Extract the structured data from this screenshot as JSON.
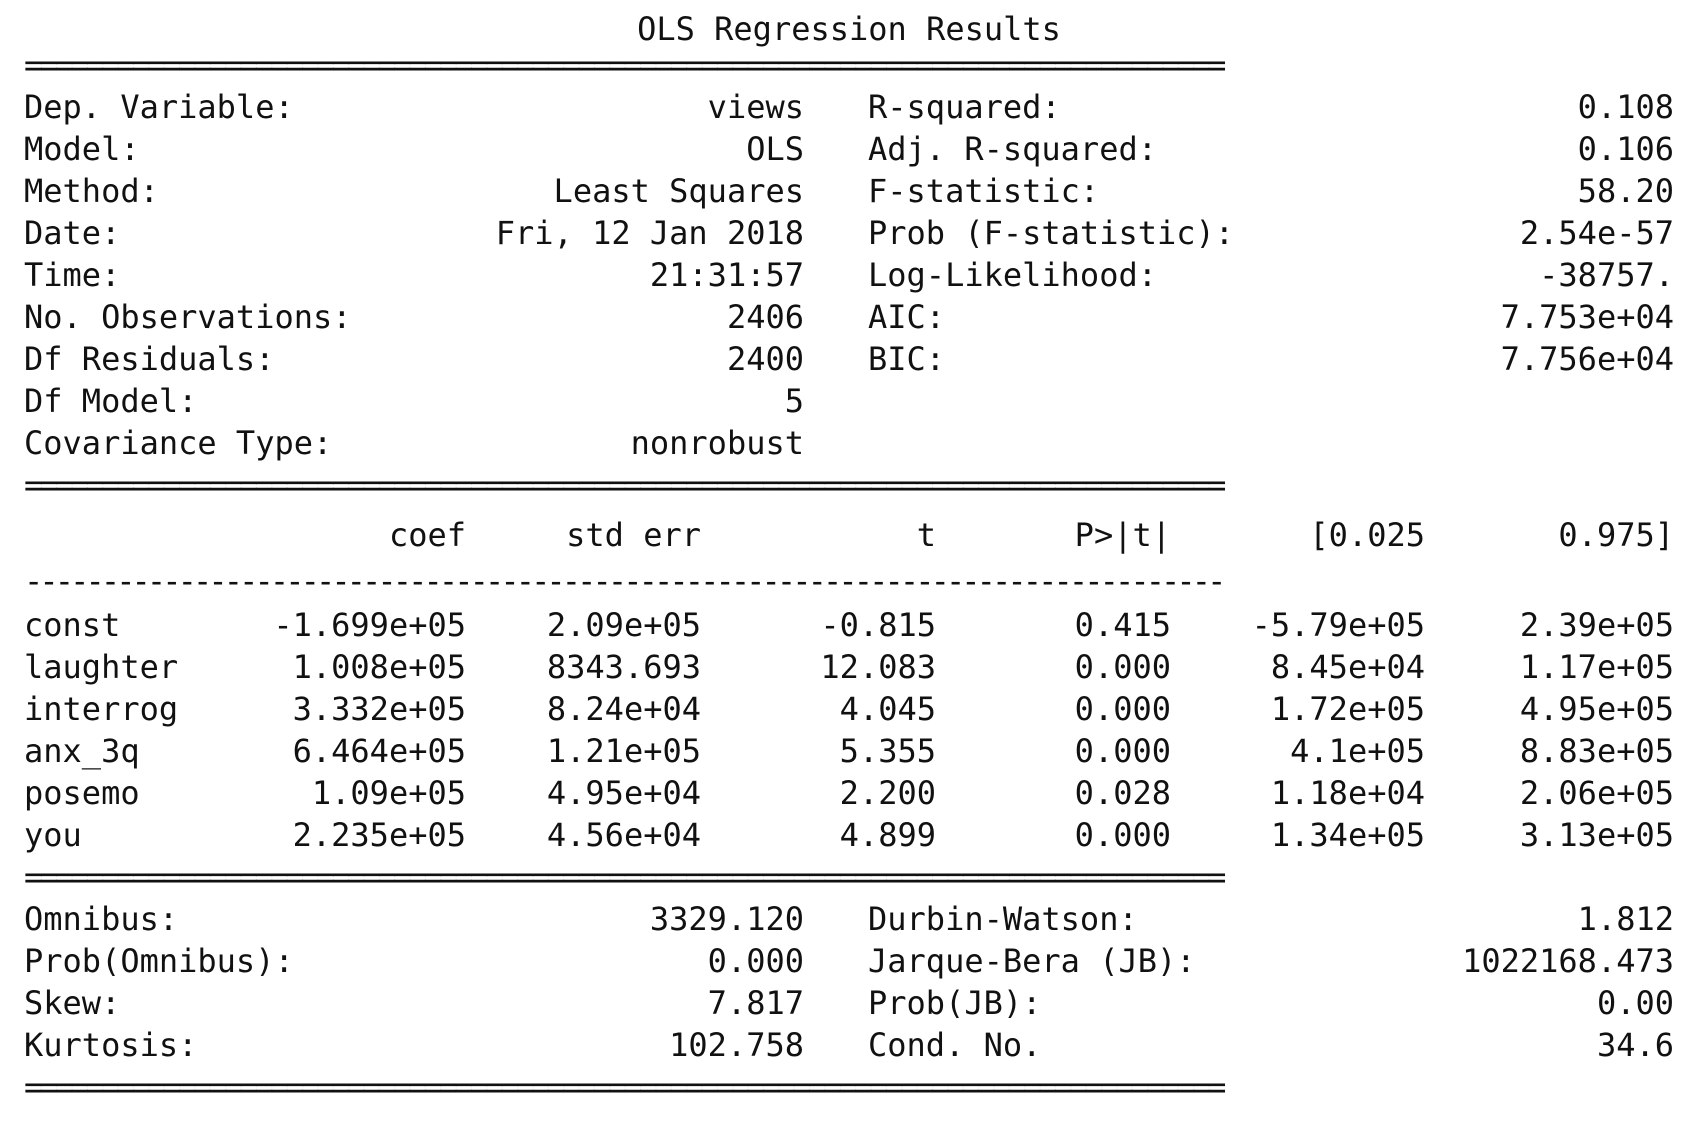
{
  "title": "OLS Regression Results",
  "rules": {
    "double": "==============================================================================",
    "single": "------------------------------------------------------------------------------"
  },
  "summary": {
    "left": [
      {
        "label": "Dep. Variable:",
        "value": "views"
      },
      {
        "label": "Model:",
        "value": "OLS"
      },
      {
        "label": "Method:",
        "value": "Least Squares"
      },
      {
        "label": "Date:",
        "value": "Fri, 12 Jan 2018"
      },
      {
        "label": "Time:",
        "value": "21:31:57"
      },
      {
        "label": "No. Observations:",
        "value": "2406"
      },
      {
        "label": "Df Residuals:",
        "value": "2400"
      },
      {
        "label": "Df Model:",
        "value": "5"
      },
      {
        "label": "Covariance Type:",
        "value": "nonrobust"
      }
    ],
    "right": [
      {
        "label": "R-squared:",
        "value": "0.108"
      },
      {
        "label": "Adj. R-squared:",
        "value": "0.106"
      },
      {
        "label": "F-statistic:",
        "value": "58.20"
      },
      {
        "label": "Prob (F-statistic):",
        "value": "2.54e-57"
      },
      {
        "label": "Log-Likelihood:",
        "value": "-38757."
      },
      {
        "label": "AIC:",
        "value": "7.753e+04"
      },
      {
        "label": "BIC:",
        "value": "7.756e+04"
      }
    ]
  },
  "coef_table": {
    "headers": [
      "coef",
      "std err",
      "t",
      "P>|t|",
      "[0.025",
      "0.975]"
    ],
    "rows": [
      {
        "name": "const",
        "cells": [
          "-1.699e+05",
          "2.09e+05",
          "-0.815",
          "0.415",
          "-5.79e+05",
          "2.39e+05"
        ]
      },
      {
        "name": "laughter",
        "cells": [
          "1.008e+05",
          "8343.693",
          "12.083",
          "0.000",
          "8.45e+04",
          "1.17e+05"
        ]
      },
      {
        "name": "interrog",
        "cells": [
          "3.332e+05",
          "8.24e+04",
          "4.045",
          "0.000",
          "1.72e+05",
          "4.95e+05"
        ]
      },
      {
        "name": "anx_3q",
        "cells": [
          "6.464e+05",
          "1.21e+05",
          "5.355",
          "0.000",
          "4.1e+05",
          "8.83e+05"
        ]
      },
      {
        "name": "posemo",
        "cells": [
          "1.09e+05",
          "4.95e+04",
          "2.200",
          "0.028",
          "1.18e+04",
          "2.06e+05"
        ]
      },
      {
        "name": "you",
        "cells": [
          "2.235e+05",
          "4.56e+04",
          "4.899",
          "0.000",
          "1.34e+05",
          "3.13e+05"
        ]
      }
    ]
  },
  "diagnostics": {
    "left": [
      {
        "label": "Omnibus:",
        "value": "3329.120"
      },
      {
        "label": "Prob(Omnibus):",
        "value": "0.000"
      },
      {
        "label": "Skew:",
        "value": "7.817"
      },
      {
        "label": "Kurtosis:",
        "value": "102.758"
      }
    ],
    "right": [
      {
        "label": "Durbin-Watson:",
        "value": "1.812"
      },
      {
        "label": "Jarque-Bera (JB):",
        "value": "1022168.473"
      },
      {
        "label": "Prob(JB):",
        "value": "0.00"
      },
      {
        "label": "Cond. No.",
        "value": "34.6"
      }
    ]
  }
}
